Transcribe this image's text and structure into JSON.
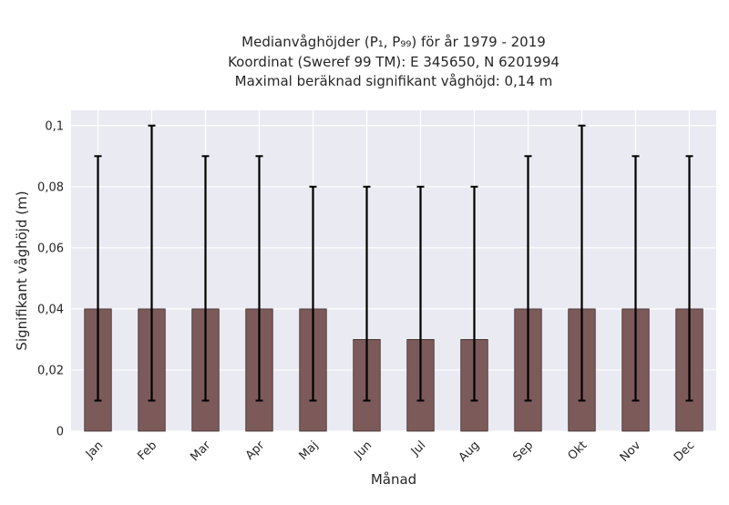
{
  "chart_data": {
    "type": "bar",
    "title_lines": [
      "Medianvåghöjder (P₁, P₉₉) för år 1979 - 2019",
      "Koordinat (Sweref 99 TM): E 345650, N 6201994",
      "Maximal beräknad signifikant våghöjd: 0,14 m"
    ],
    "xlabel": "Månad",
    "ylabel": "Signifikant våghöjd (m)",
    "categories": [
      "Jan",
      "Feb",
      "Mar",
      "Apr",
      "Maj",
      "Jun",
      "Jul",
      "Aug",
      "Sep",
      "Okt",
      "Nov",
      "Dec"
    ],
    "values": [
      0.04,
      0.04,
      0.04,
      0.04,
      0.04,
      0.03,
      0.03,
      0.03,
      0.04,
      0.04,
      0.04,
      0.04
    ],
    "error_low": [
      0.01,
      0.01,
      0.01,
      0.01,
      0.01,
      0.01,
      0.01,
      0.01,
      0.01,
      0.01,
      0.01,
      0.01
    ],
    "error_high": [
      0.09,
      0.1,
      0.09,
      0.09,
      0.08,
      0.08,
      0.08,
      0.08,
      0.09,
      0.1,
      0.09,
      0.09
    ],
    "ylim": [
      0,
      0.105
    ],
    "yticks": [
      0,
      0.02,
      0.04,
      0.06,
      0.08,
      0.1
    ],
    "ytick_labels": [
      "0",
      "0,02",
      "0,04",
      "0,06",
      "0,08",
      "0,1"
    ],
    "grid": true,
    "colors": {
      "bar": "#7d5a5a",
      "bar_edge": "#3a2a2a",
      "error": "#000000",
      "plot_bg": "#eaeaf2",
      "grid": "#ffffff"
    }
  }
}
